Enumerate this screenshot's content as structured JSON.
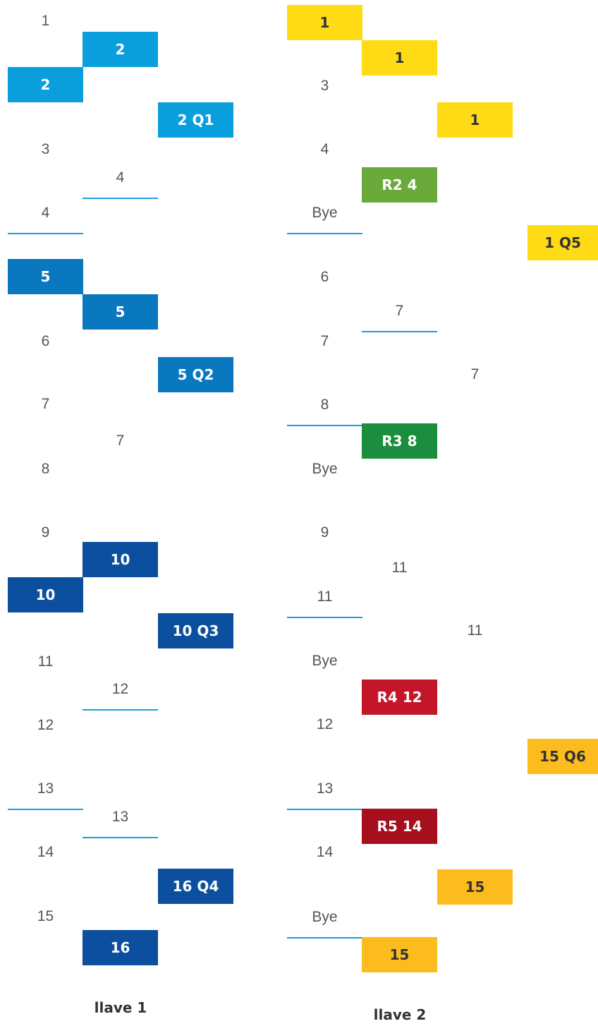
{
  "brackets": [
    {
      "title": "llave 1",
      "items": [
        "1",
        "2",
        "2",
        "2 Q1",
        "3",
        "4",
        "4",
        "5",
        "5",
        "6",
        "5 Q2",
        "7",
        "7",
        "8",
        "9",
        "10",
        "10",
        "10 Q3",
        "11",
        "12",
        "12",
        "13",
        "13",
        "14",
        "16 Q4",
        "15",
        "16"
      ]
    },
    {
      "title": "llave 2",
      "items": [
        "1",
        "1",
        "3",
        "1",
        "4",
        "R2 4",
        "Bye",
        "1 Q5",
        "6",
        "7",
        "7",
        "7",
        "8",
        "R3 8",
        "Bye",
        "9",
        "11",
        "11",
        "11",
        "Bye",
        "R4 12",
        "12",
        "15 Q6",
        "13",
        "R5 14",
        "14",
        "15",
        "Bye",
        "15"
      ]
    }
  ]
}
